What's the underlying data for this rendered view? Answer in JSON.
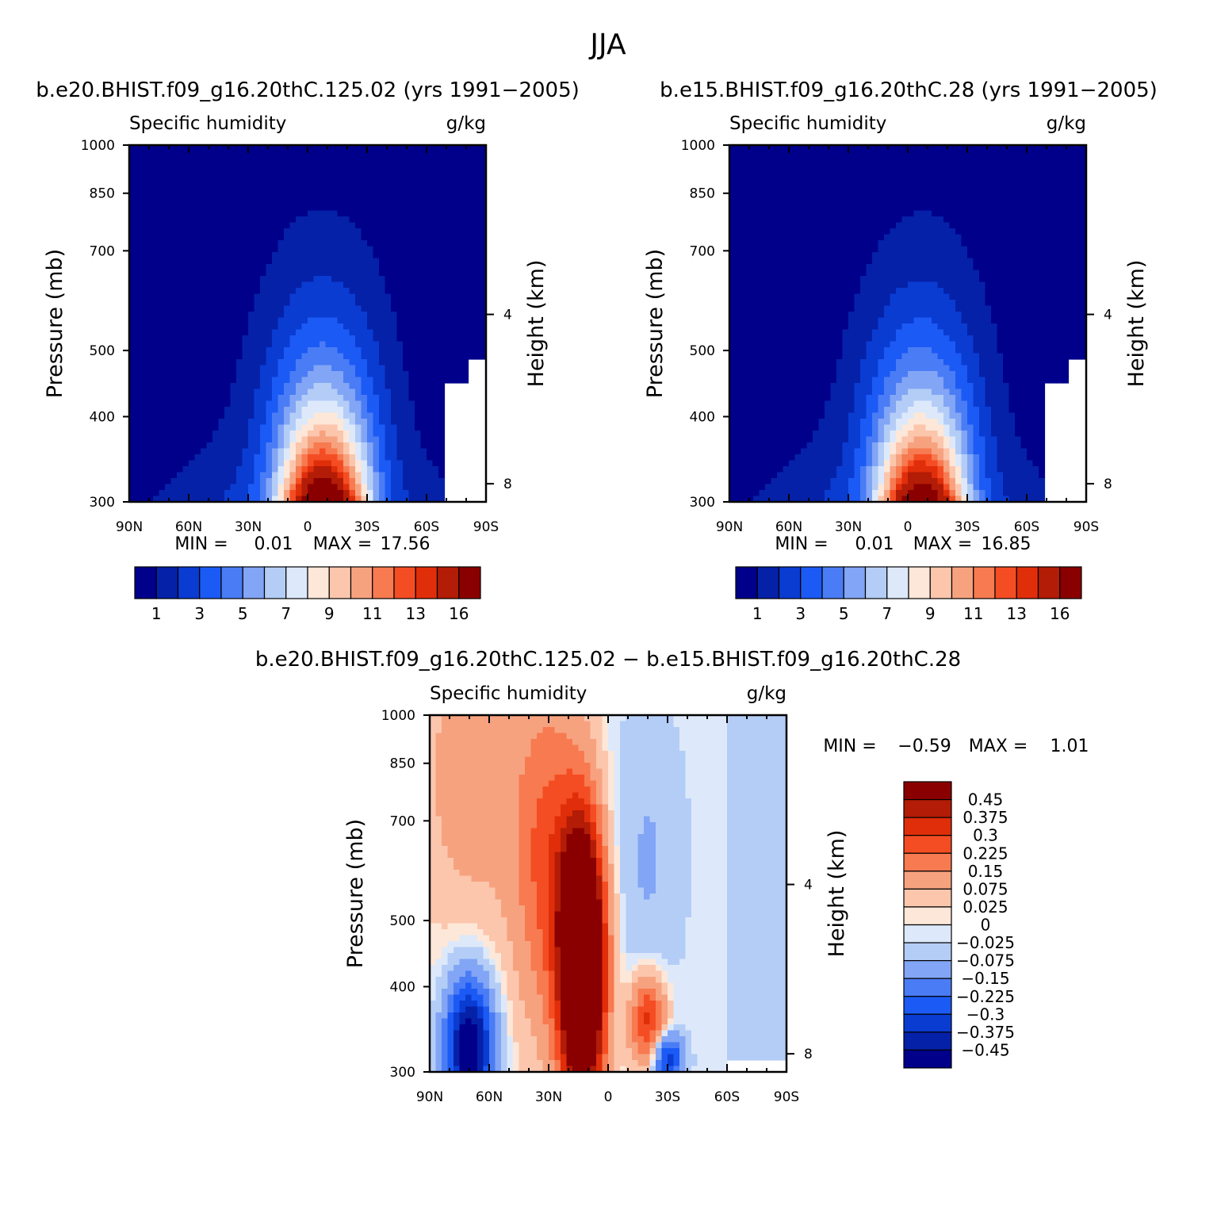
{
  "figure": {
    "title": "JJA"
  },
  "chart_data": [
    {
      "type": "heatmap",
      "title": "b.e20.BHIST.f09_g16.20thC.125.02 (yrs 1991−2005)",
      "left_string": "Specific humidity",
      "right_string": "g/kg",
      "ylabel": "Pressure (mb)",
      "ylabel_right": "Height (km)",
      "x_ticks": [
        "90N",
        "60N",
        "30N",
        "0",
        "30S",
        "60S",
        "90S"
      ],
      "y_ticks": [
        "300",
        "400",
        "500",
        "700",
        "850",
        "1000"
      ],
      "y_right_ticks": [
        "8",
        "4"
      ],
      "xlim": [
        90,
        -90
      ],
      "ylim": [
        1000,
        300
      ],
      "y_scale": "log",
      "stats": {
        "min_label": "MIN =",
        "min": "0.01",
        "max_label": "MAX =",
        "max": "17.56"
      },
      "colorbar": {
        "labels": [
          "1",
          "3",
          "5",
          "7",
          "9",
          "11",
          "13",
          "16"
        ],
        "colors": [
          "#00008a",
          "#0521a8",
          "#0a3cd2",
          "#1c5af5",
          "#4a7cf5",
          "#82a5f5",
          "#b4cdf7",
          "#dde9fa",
          "#fde7d8",
          "#fbc6ac",
          "#f7a27f",
          "#f77a50",
          "#f54d23",
          "#e02e0a",
          "#b31c06",
          "#8a0000"
        ]
      }
    },
    {
      "type": "heatmap",
      "title": "b.e15.BHIST.f09_g16.20thC.28 (yrs 1991−2005)",
      "left_string": "Specific humidity",
      "right_string": "g/kg",
      "ylabel": "Pressure (mb)",
      "ylabel_right": "Height (km)",
      "x_ticks": [
        "90N",
        "60N",
        "30N",
        "0",
        "30S",
        "60S",
        "90S"
      ],
      "y_ticks": [
        "300",
        "400",
        "500",
        "700",
        "850",
        "1000"
      ],
      "y_right_ticks": [
        "8",
        "4"
      ],
      "xlim": [
        90,
        -90
      ],
      "ylim": [
        1000,
        300
      ],
      "y_scale": "log",
      "stats": {
        "min_label": "MIN =",
        "min": "0.01",
        "max_label": "MAX =",
        "max": "16.85"
      },
      "colorbar": {
        "labels": [
          "1",
          "3",
          "5",
          "7",
          "9",
          "11",
          "13",
          "16"
        ],
        "colors": [
          "#00008a",
          "#0521a8",
          "#0a3cd2",
          "#1c5af5",
          "#4a7cf5",
          "#82a5f5",
          "#b4cdf7",
          "#dde9fa",
          "#fde7d8",
          "#fbc6ac",
          "#f7a27f",
          "#f77a50",
          "#f54d23",
          "#e02e0a",
          "#b31c06",
          "#8a0000"
        ]
      }
    },
    {
      "type": "heatmap",
      "title": "b.e20.BHIST.f09_g16.20thC.125.02 − b.e15.BHIST.f09_g16.20thC.28",
      "left_string": "Specific humidity",
      "right_string": "g/kg",
      "ylabel": "Pressure (mb)",
      "ylabel_right": "Height (km)",
      "x_ticks": [
        "90N",
        "60N",
        "30N",
        "0",
        "30S",
        "60S",
        "90S"
      ],
      "y_ticks": [
        "300",
        "400",
        "500",
        "700",
        "850",
        "1000"
      ],
      "y_right_ticks": [
        "8",
        "4"
      ],
      "xlim": [
        90,
        -90
      ],
      "ylim": [
        1000,
        300
      ],
      "y_scale": "log",
      "stats": {
        "min_label": "MIN =",
        "min": "−0.59",
        "max_label": "MAX =",
        "max": "1.01"
      },
      "colorbar": {
        "labels": [
          "0.45",
          "0.375",
          "0.3",
          "0.225",
          "0.15",
          "0.075",
          "0.025",
          "0",
          "−0.025",
          "−0.075",
          "−0.15",
          "−0.225",
          "−0.3",
          "−0.375",
          "−0.45"
        ],
        "colors": [
          "#8a0000",
          "#b31c06",
          "#e02e0a",
          "#f54d23",
          "#f77a50",
          "#f7a27f",
          "#fbc6ac",
          "#fde7d8",
          "#dde9fa",
          "#b4cdf7",
          "#82a5f5",
          "#4a7cf5",
          "#1c5af5",
          "#0a3cd2",
          "#0521a8",
          "#00008a"
        ]
      }
    }
  ]
}
